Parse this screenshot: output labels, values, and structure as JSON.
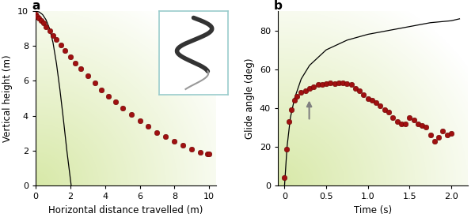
{
  "chart_data": [
    {
      "type": "scatter",
      "title": "a",
      "x_label": "Horizontal distance travelled (m)",
      "y_label": "Vertical height (m)",
      "xlim": [
        0,
        10.4
      ],
      "ylim": [
        0,
        10
      ],
      "xticks": [
        0,
        2,
        4,
        6,
        8,
        10
      ],
      "yticks": [
        0,
        2,
        4,
        6,
        8,
        10
      ],
      "series": [
        {
          "type": "scatter",
          "color": "#a01010",
          "marker": "o",
          "x": [
            0,
            0.1,
            0.2,
            0.3,
            0.45,
            0.6,
            0.8,
            1.0,
            1.2,
            1.45,
            1.7,
            2.0,
            2.3,
            2.6,
            3.0,
            3.4,
            3.8,
            4.2,
            4.6,
            5.0,
            5.5,
            6.0,
            6.5,
            7.0,
            7.5,
            8.0,
            8.5,
            9.0,
            9.5,
            9.9,
            10.0
          ],
          "values": [
            9.8,
            9.7,
            9.6,
            9.45,
            9.3,
            9.1,
            8.85,
            8.6,
            8.35,
            8.05,
            7.75,
            7.4,
            7.0,
            6.7,
            6.3,
            5.9,
            5.5,
            5.1,
            4.8,
            4.45,
            4.1,
            3.7,
            3.4,
            3.05,
            2.8,
            2.55,
            2.3,
            2.1,
            1.9,
            1.8,
            1.8
          ]
        },
        {
          "type": "line",
          "color": "#000000",
          "line_style": "solid",
          "x": [
            0,
            0.2,
            0.4,
            0.6,
            0.8,
            1.0,
            1.2,
            1.4,
            1.6,
            1.8,
            2.05
          ],
          "values": [
            10,
            9.95,
            9.8,
            9.5,
            9.0,
            8.2,
            7.0,
            5.5,
            3.8,
            2.0,
            0
          ]
        }
      ]
    },
    {
      "type": "scatter",
      "title": "b",
      "x_label": "Time (s)",
      "y_label": "Glide angle (deg)",
      "xlim": [
        -0.08,
        2.2
      ],
      "ylim": [
        0,
        90
      ],
      "xticks": [
        0,
        0.5,
        {
          "value": 1,
          "label": "1.0"
        },
        1.5,
        {
          "value": 2,
          "label": "2.0"
        }
      ],
      "yticks": [
        0,
        20,
        40,
        60,
        80
      ],
      "series": [
        {
          "type": "scatter",
          "color": "#a01010",
          "marker": "o",
          "x": [
            0,
            0.02,
            0.05,
            0.08,
            0.12,
            0.15,
            0.2,
            0.25,
            0.3,
            0.35,
            0.4,
            0.45,
            0.5,
            0.55,
            0.6,
            0.65,
            0.7,
            0.75,
            0.8,
            0.85,
            0.9,
            0.95,
            1.0,
            1.05,
            1.1,
            1.15,
            1.2,
            1.25,
            1.3,
            1.35,
            1.4,
            1.45,
            1.5,
            1.55,
            1.6,
            1.65,
            1.7,
            1.75,
            1.8,
            1.85,
            1.9,
            1.95,
            2.0
          ],
          "values": [
            4,
            19,
            33,
            39,
            44,
            46,
            48,
            49,
            50,
            51,
            52,
            52,
            52.5,
            53,
            52.5,
            53,
            53,
            52.5,
            52,
            50,
            49,
            47,
            45,
            44,
            43,
            41,
            39,
            38,
            35,
            33,
            32,
            32,
            35,
            34,
            32,
            31,
            30,
            26,
            23,
            25,
            28,
            26,
            27
          ]
        },
        {
          "type": "line",
          "color": "#000000",
          "line_style": "solid",
          "x": [
            0,
            0.03,
            0.07,
            0.12,
            0.2,
            0.3,
            0.5,
            0.75,
            1.0,
            1.25,
            1.5,
            1.75,
            2.0,
            2.1
          ],
          "values": [
            0,
            20,
            35,
            45,
            55,
            62,
            70,
            75,
            78,
            80,
            82,
            84,
            85,
            86
          ]
        }
      ]
    }
  ]
}
